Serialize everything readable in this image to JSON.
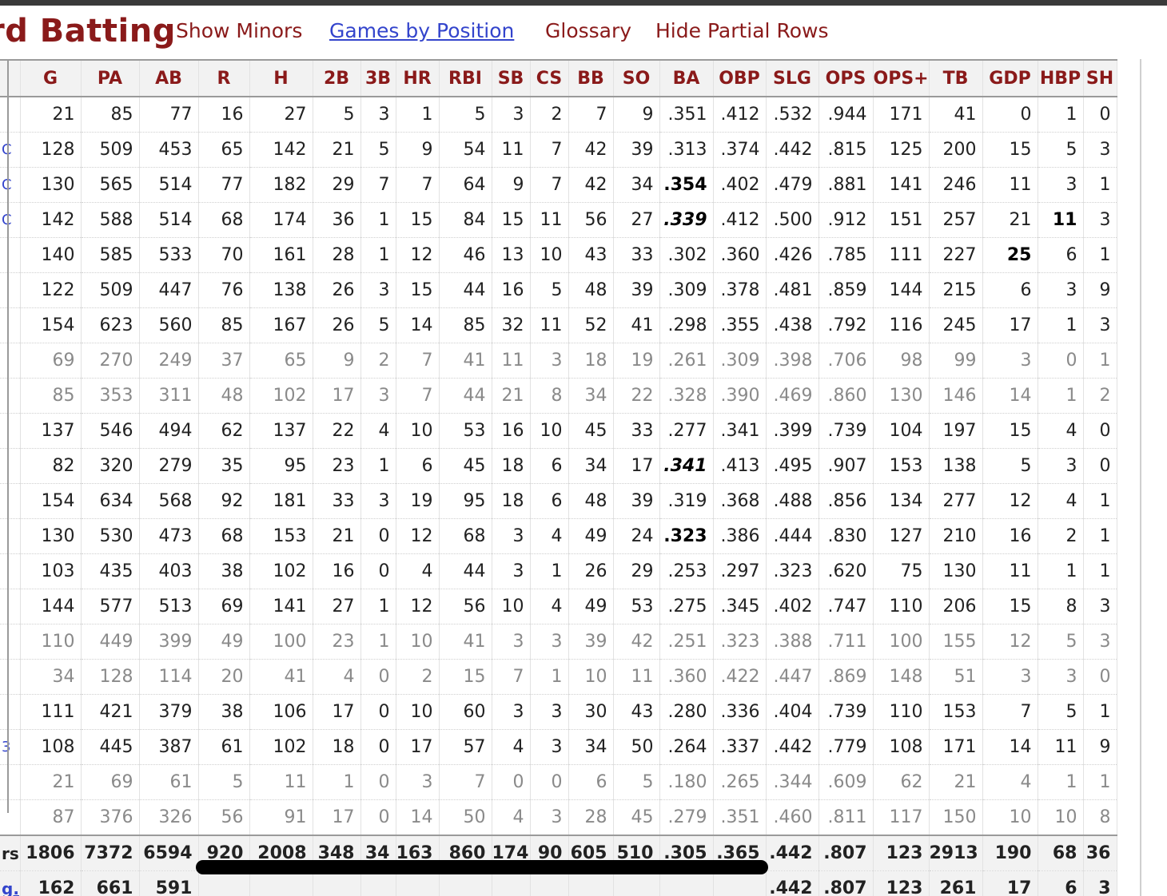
{
  "heading": {
    "title": "rd Batting",
    "links": [
      "Show Minors",
      "Games by Position",
      "Glossary",
      "Hide Partial Rows"
    ]
  },
  "table": {
    "columns": [
      "",
      "G",
      "PA",
      "AB",
      "R",
      "H",
      "2B",
      "3B",
      "HR",
      "RBI",
      "SB",
      "CS",
      "BB",
      "SO",
      "BA",
      "OBP",
      "SLG",
      "OPS",
      "OPS+",
      "TB",
      "GDP",
      "HBP",
      "SH"
    ],
    "rows": [
      {
        "lead": "",
        "partial": false,
        "cells": [
          "21",
          "85",
          "77",
          "16",
          "27",
          "5",
          "3",
          "1",
          "5",
          "3",
          "2",
          "7",
          "9",
          ".351",
          ".412",
          ".532",
          ".944",
          "171",
          "41",
          "0",
          "1",
          "0"
        ]
      },
      {
        "lead": "C",
        "partial": false,
        "cells": [
          "128",
          "509",
          "453",
          "65",
          "142",
          "21",
          "5",
          "9",
          "54",
          "11",
          "7",
          "42",
          "39",
          ".313",
          ".374",
          ".442",
          ".815",
          "125",
          "200",
          "15",
          "5",
          "3"
        ]
      },
      {
        "lead": "C",
        "partial": false,
        "cells": [
          "130",
          "565",
          "514",
          "77",
          "182",
          "29",
          "7",
          "7",
          "64",
          "9",
          "7",
          "42",
          "34",
          ".354",
          ".402",
          ".479",
          ".881",
          "141",
          "246",
          "11",
          "3",
          "1"
        ],
        "bold": [
          13
        ]
      },
      {
        "lead": "C",
        "partial": false,
        "cells": [
          "142",
          "588",
          "514",
          "68",
          "174",
          "36",
          "1",
          "15",
          "84",
          "15",
          "11",
          "56",
          "27",
          ".339",
          ".412",
          ".500",
          ".912",
          "151",
          "257",
          "21",
          "11",
          "3"
        ],
        "bold": [
          13,
          20
        ],
        "italic": [
          13
        ]
      },
      {
        "lead": "",
        "partial": false,
        "cells": [
          "140",
          "585",
          "533",
          "70",
          "161",
          "28",
          "1",
          "12",
          "46",
          "13",
          "10",
          "43",
          "33",
          ".302",
          ".360",
          ".426",
          ".785",
          "111",
          "227",
          "25",
          "6",
          "1"
        ],
        "bold": [
          19
        ]
      },
      {
        "lead": "",
        "partial": false,
        "cells": [
          "122",
          "509",
          "447",
          "76",
          "138",
          "26",
          "3",
          "15",
          "44",
          "16",
          "5",
          "48",
          "39",
          ".309",
          ".378",
          ".481",
          ".859",
          "144",
          "215",
          "6",
          "3",
          "9"
        ]
      },
      {
        "lead": "",
        "partial": false,
        "cells": [
          "154",
          "623",
          "560",
          "85",
          "167",
          "26",
          "5",
          "14",
          "85",
          "32",
          "11",
          "52",
          "41",
          ".298",
          ".355",
          ".438",
          ".792",
          "116",
          "245",
          "17",
          "1",
          "3"
        ]
      },
      {
        "lead": "",
        "partial": true,
        "cells": [
          "69",
          "270",
          "249",
          "37",
          "65",
          "9",
          "2",
          "7",
          "41",
          "11",
          "3",
          "18",
          "19",
          ".261",
          ".309",
          ".398",
          ".706",
          "98",
          "99",
          "3",
          "0",
          "1"
        ]
      },
      {
        "lead": "",
        "partial": true,
        "cells": [
          "85",
          "353",
          "311",
          "48",
          "102",
          "17",
          "3",
          "7",
          "44",
          "21",
          "8",
          "34",
          "22",
          ".328",
          ".390",
          ".469",
          ".860",
          "130",
          "146",
          "14",
          "1",
          "2"
        ]
      },
      {
        "lead": "",
        "partial": false,
        "cells": [
          "137",
          "546",
          "494",
          "62",
          "137",
          "22",
          "4",
          "10",
          "53",
          "16",
          "10",
          "45",
          "33",
          ".277",
          ".341",
          ".399",
          ".739",
          "104",
          "197",
          "15",
          "4",
          "0"
        ]
      },
      {
        "lead": "",
        "partial": false,
        "cells": [
          "82",
          "320",
          "279",
          "35",
          "95",
          "23",
          "1",
          "6",
          "45",
          "18",
          "6",
          "34",
          "17",
          ".341",
          ".413",
          ".495",
          ".907",
          "153",
          "138",
          "5",
          "3",
          "0"
        ],
        "bold": [
          13
        ],
        "italic": [
          13
        ]
      },
      {
        "lead": "",
        "partial": false,
        "cells": [
          "154",
          "634",
          "568",
          "92",
          "181",
          "33",
          "3",
          "19",
          "95",
          "18",
          "6",
          "48",
          "39",
          ".319",
          ".368",
          ".488",
          ".856",
          "134",
          "277",
          "12",
          "4",
          "1"
        ]
      },
      {
        "lead": "",
        "partial": false,
        "cells": [
          "130",
          "530",
          "473",
          "68",
          "153",
          "21",
          "0",
          "12",
          "68",
          "3",
          "4",
          "49",
          "24",
          ".323",
          ".386",
          ".444",
          ".830",
          "127",
          "210",
          "16",
          "2",
          "1"
        ],
        "bold": [
          13
        ]
      },
      {
        "lead": "",
        "partial": false,
        "cells": [
          "103",
          "435",
          "403",
          "38",
          "102",
          "16",
          "0",
          "4",
          "44",
          "3",
          "1",
          "26",
          "29",
          ".253",
          ".297",
          ".323",
          ".620",
          "75",
          "130",
          "11",
          "1",
          "1"
        ]
      },
      {
        "lead": "",
        "partial": false,
        "cells": [
          "144",
          "577",
          "513",
          "69",
          "141",
          "27",
          "1",
          "12",
          "56",
          "10",
          "4",
          "49",
          "53",
          ".275",
          ".345",
          ".402",
          ".747",
          "110",
          "206",
          "15",
          "8",
          "3"
        ]
      },
      {
        "lead": "",
        "partial": true,
        "cells": [
          "110",
          "449",
          "399",
          "49",
          "100",
          "23",
          "1",
          "10",
          "41",
          "3",
          "3",
          "39",
          "42",
          ".251",
          ".323",
          ".388",
          ".711",
          "100",
          "155",
          "12",
          "5",
          "3"
        ]
      },
      {
        "lead": "",
        "partial": true,
        "cells": [
          "34",
          "128",
          "114",
          "20",
          "41",
          "4",
          "0",
          "2",
          "15",
          "7",
          "1",
          "10",
          "11",
          ".360",
          ".422",
          ".447",
          ".869",
          "148",
          "51",
          "3",
          "3",
          "0"
        ]
      },
      {
        "lead": "",
        "partial": false,
        "cells": [
          "111",
          "421",
          "379",
          "38",
          "106",
          "17",
          "0",
          "10",
          "60",
          "3",
          "3",
          "30",
          "43",
          ".280",
          ".336",
          ".404",
          ".739",
          "110",
          "153",
          "7",
          "5",
          "1"
        ]
      },
      {
        "lead": "3",
        "partial": false,
        "cells": [
          "108",
          "445",
          "387",
          "61",
          "102",
          "18",
          "0",
          "17",
          "57",
          "4",
          "3",
          "34",
          "50",
          ".264",
          ".337",
          ".442",
          ".779",
          "108",
          "171",
          "14",
          "11",
          "9"
        ]
      },
      {
        "lead": "",
        "partial": true,
        "cells": [
          "21",
          "69",
          "61",
          "5",
          "11",
          "1",
          "0",
          "3",
          "7",
          "0",
          "0",
          "6",
          "5",
          ".180",
          ".265",
          ".344",
          ".609",
          "62",
          "21",
          "4",
          "1",
          "1"
        ]
      },
      {
        "lead": "",
        "partial": true,
        "cells": [
          "87",
          "376",
          "326",
          "56",
          "91",
          "17",
          "0",
          "14",
          "50",
          "4",
          "3",
          "28",
          "45",
          ".279",
          ".351",
          ".460",
          ".811",
          "117",
          "150",
          "10",
          "10",
          "8"
        ]
      }
    ],
    "total": {
      "lead": "rs",
      "cells": [
        "1806",
        "7372",
        "6594",
        "920",
        "2008",
        "348",
        "34",
        "163",
        "860",
        "174",
        "90",
        "605",
        "510",
        ".305",
        ".365",
        ".442",
        ".807",
        "123",
        "2913",
        "190",
        "68",
        "36"
      ]
    },
    "average": {
      "lead": "g.",
      "cells": [
        "162",
        "661",
        "591",
        "",
        "",
        "",
        "",
        "",
        "",
        "",
        "",
        "",
        "",
        "",
        "",
        ".442",
        ".807",
        "123",
        "261",
        "17",
        "6",
        "3"
      ]
    }
  }
}
